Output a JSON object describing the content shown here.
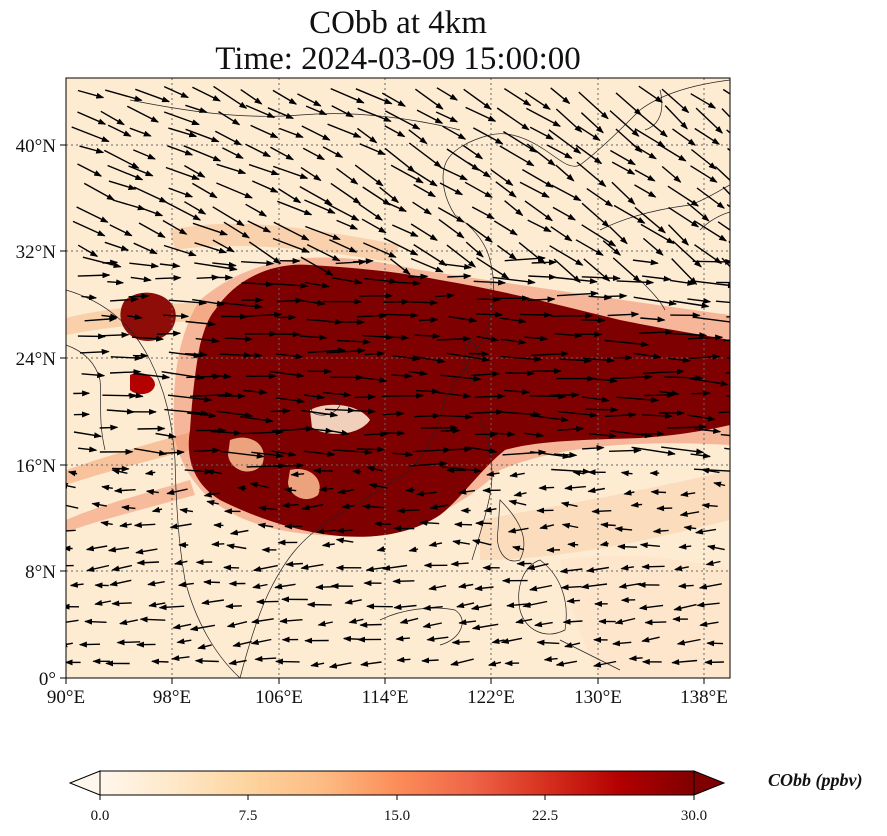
{
  "title": {
    "line1": "CObb at 4km",
    "line2": "Time: 2024-03-09 15:00:00"
  },
  "map": {
    "projection": "PlateCarree",
    "extent": {
      "lon_min": 90,
      "lon_max": 140,
      "lat_min": 0,
      "lat_max": 45
    },
    "lat_ticks": [
      {
        "value": 0,
        "label": "0°"
      },
      {
        "value": 8,
        "label": "8°N"
      },
      {
        "value": 16,
        "label": "16°N"
      },
      {
        "value": 24,
        "label": "24°N"
      },
      {
        "value": 32,
        "label": "32°N"
      },
      {
        "value": 40,
        "label": "40°N"
      }
    ],
    "lon_ticks": [
      {
        "value": 90,
        "label": "90°E"
      },
      {
        "value": 98,
        "label": "98°E"
      },
      {
        "value": 106,
        "label": "106°E"
      },
      {
        "value": 114,
        "label": "114°E"
      },
      {
        "value": 122,
        "label": "122°E"
      },
      {
        "value": 130,
        "label": "130°E"
      },
      {
        "value": 138,
        "label": "138°E"
      }
    ],
    "gridlines": "dotted",
    "field": "CObb concentration, high (≥30 ppbv) plume band from Indochina east across South China Sea/Taiwan to ~140°E between ~12°N and ~31°N",
    "vectors": "wind arrows, predominantly westerly-to-northwesterly north of 28°N, westerly across plume, easterly south of ~10°N"
  },
  "colorbar": {
    "label": "CObb (ppbv)",
    "min": 0.0,
    "max": 30.0,
    "ticks": [
      "0.0",
      "7.5",
      "15.0",
      "22.5",
      "30.0"
    ],
    "colormap": "OrRd",
    "colors": [
      "#fff7ec",
      "#fee8c8",
      "#fdd49e",
      "#fdbb84",
      "#fc8d59",
      "#ef6548",
      "#d7301f",
      "#b30000",
      "#7f0000"
    ],
    "extend": "both"
  }
}
